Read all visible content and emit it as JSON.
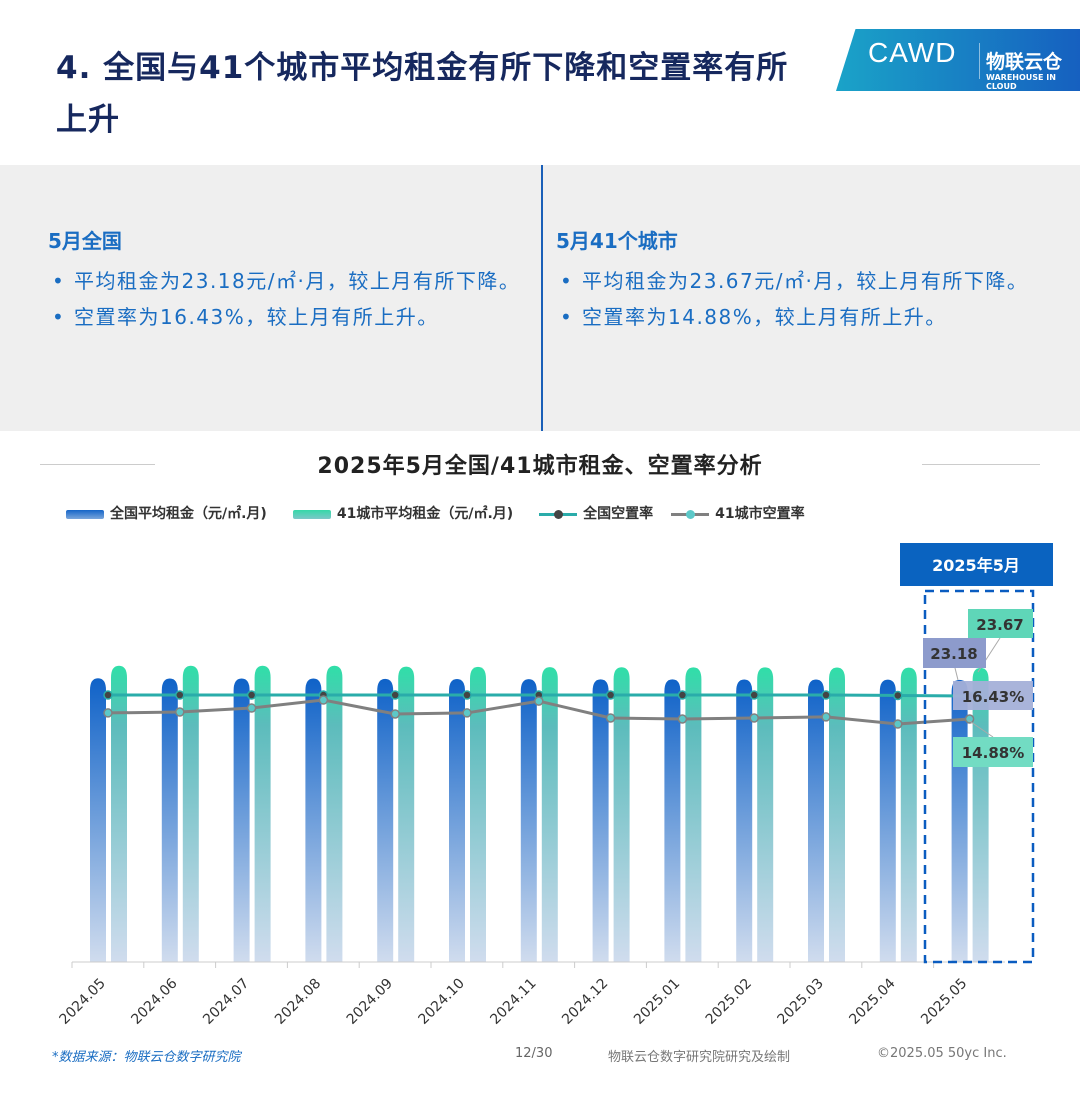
{
  "header": {
    "title": "4. 全国与41个城市平均租金有所下降和空置率有所上升",
    "logo_text": "CAWD",
    "logo_cn": "物联云仓",
    "logo_en": "WAREHOUSE IN CLOUD"
  },
  "summary": {
    "left": {
      "heading": "5月全国",
      "items": [
        "平均租金为23.18元/㎡·月，较上月有所下降。",
        "空置率为16.43%，较上月有所上升。"
      ]
    },
    "right": {
      "heading": "5月41个城市",
      "items": [
        "平均租金为23.67元/㎡·月，较上月有所下降。",
        "空置率为14.88%，较上月有所上升。"
      ]
    }
  },
  "chart_data": {
    "type": "bar",
    "title": "2025年5月全国/41城市租金、空置率分析",
    "categories": [
      "2024.05",
      "2024.06",
      "2024.07",
      "2024.08",
      "2024.09",
      "2024.10",
      "2024.11",
      "2024.12",
      "2025.01",
      "2025.02",
      "2025.03",
      "2025.04",
      "2025.05"
    ],
    "series": [
      {
        "name": "全国平均租金（元/㎡.月)",
        "type": "bar",
        "color": "#1565c8",
        "values": [
          23.32,
          23.3,
          23.29,
          23.29,
          23.26,
          23.25,
          23.24,
          23.22,
          23.22,
          23.21,
          23.21,
          23.2,
          23.18
        ]
      },
      {
        "name": "41城市平均租金（元/㎡.月)",
        "type": "bar",
        "color": "#35d8a8",
        "values": [
          23.85,
          23.85,
          23.85,
          23.85,
          23.78,
          23.76,
          23.74,
          23.73,
          23.72,
          23.72,
          23.71,
          23.7,
          23.67
        ]
      },
      {
        "name": "全国空置率",
        "type": "line",
        "unit": "%",
        "color": "#2aacaa",
        "values": [
          16.5,
          16.5,
          16.5,
          16.5,
          16.5,
          16.5,
          16.5,
          16.5,
          16.5,
          16.5,
          16.5,
          16.47,
          16.43
        ]
      },
      {
        "name": "41城市空置率",
        "type": "line",
        "unit": "%",
        "color": "#808080",
        "values": [
          15.29,
          15.35,
          15.62,
          16.16,
          15.22,
          15.29,
          16.09,
          14.95,
          14.88,
          14.95,
          15.02,
          14.54,
          14.88
        ]
      }
    ],
    "highlight": {
      "label": "2025年5月",
      "category": "2025.05"
    },
    "data_labels": [
      "23.67",
      "23.18",
      "16.43%",
      "14.88%"
    ],
    "grid": false,
    "legend": "top"
  },
  "footer": {
    "source": "*数据来源：物联云仓数字研究院",
    "page": "12/30",
    "credit": "物联云仓数字研究院研究及绘制",
    "copyright": "©2025.05 50yc Inc."
  }
}
